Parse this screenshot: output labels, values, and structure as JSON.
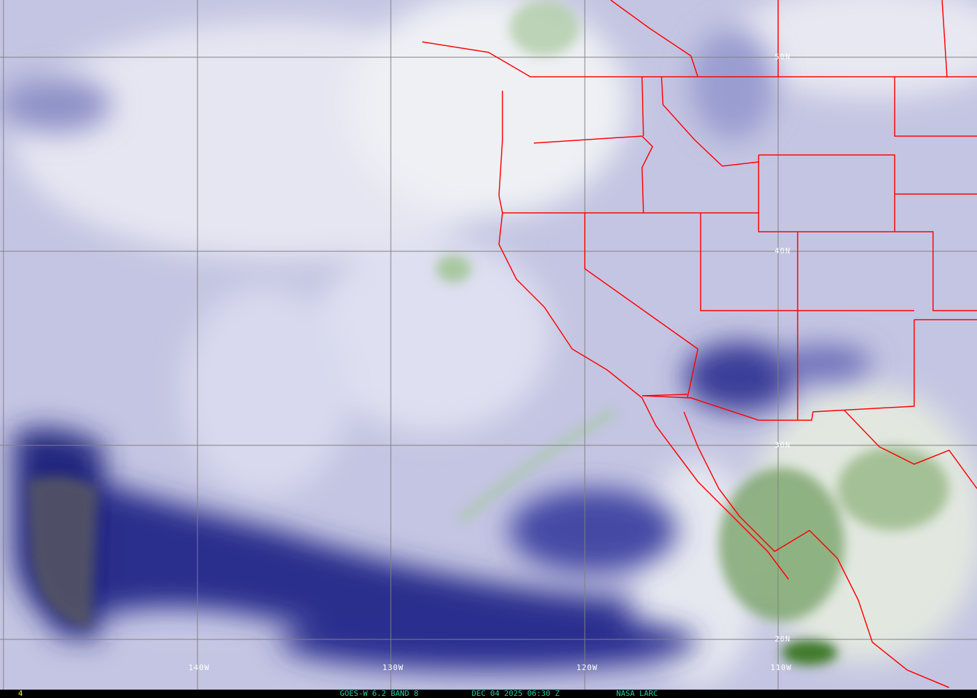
{
  "image": {
    "satellite": "GOES-W",
    "channel": "6.2 BAND 8",
    "date": "DEC 04 2025",
    "time": "06:30 Z",
    "credit": "NASA LARC",
    "frame": "4"
  },
  "grid": {
    "latitudes": [
      "50N",
      "40N",
      "30N",
      "20N"
    ],
    "longitudes": [
      "140W",
      "130W",
      "120W",
      "110W"
    ]
  },
  "colors": {
    "dry": "#1b1f7a",
    "moist": "#f0f0f8",
    "cold_cloud": "#3f7a2a",
    "borders": "#ff0000",
    "grid": "#808080",
    "caption": "#20d0a0",
    "frame_number": "#ffff00"
  }
}
